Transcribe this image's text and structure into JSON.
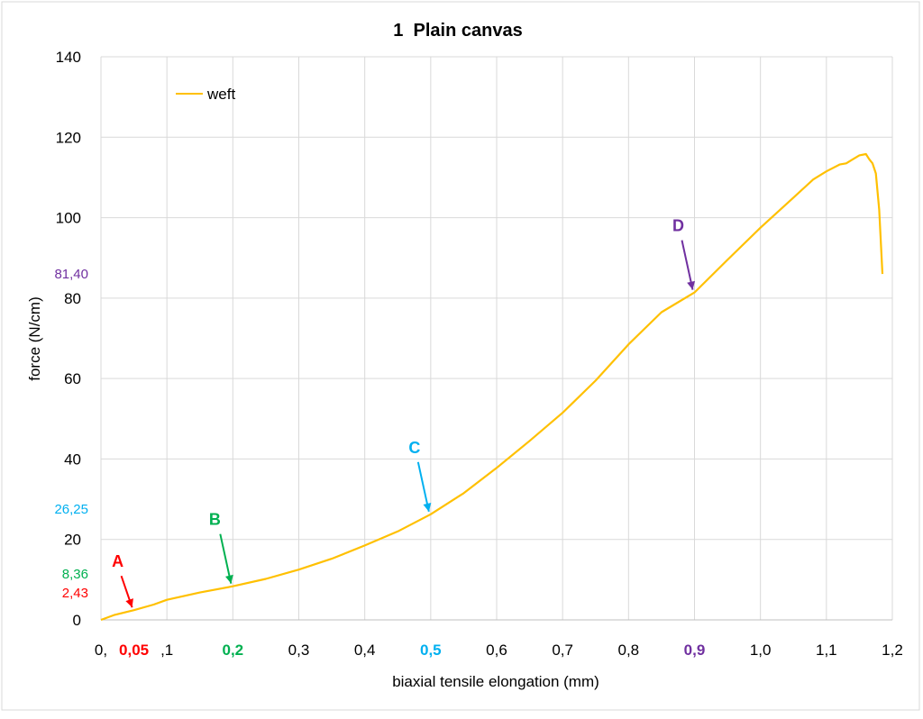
{
  "chart_data": {
    "type": "line",
    "title": "1  Plain canvas",
    "xlabel": "biaxial tensile elongation (mm)",
    "ylabel": "force (N/cm)",
    "xlim": [
      0,
      1.2
    ],
    "ylim": [
      0,
      140
    ],
    "grid": true,
    "legend_position": "top-left",
    "x_ticks": [
      {
        "value": 0,
        "label": "0,"
      },
      {
        "value": 0.1,
        "label": ",1"
      },
      {
        "value": 0.2,
        "label": "0,2"
      },
      {
        "value": 0.3,
        "label": "0,3"
      },
      {
        "value": 0.4,
        "label": "0,4"
      },
      {
        "value": 0.5,
        "label": "0,5"
      },
      {
        "value": 0.6,
        "label": "0,6"
      },
      {
        "value": 0.7,
        "label": "0,7"
      },
      {
        "value": 0.8,
        "label": "0,8"
      },
      {
        "value": 0.9,
        "label": "0,9"
      },
      {
        "value": 1.0,
        "label": "1,0"
      },
      {
        "value": 1.1,
        "label": "1,1"
      },
      {
        "value": 1.2,
        "label": "1,2"
      }
    ],
    "y_ticks": [
      {
        "value": 0,
        "label": "0"
      },
      {
        "value": 20,
        "label": "20"
      },
      {
        "value": 40,
        "label": "40"
      },
      {
        "value": 60,
        "label": "60"
      },
      {
        "value": 80,
        "label": "80"
      },
      {
        "value": 100,
        "label": "100"
      },
      {
        "value": 120,
        "label": "120"
      },
      {
        "value": 140,
        "label": "140"
      }
    ],
    "series": [
      {
        "name": "weft",
        "color": "#FFC000",
        "x": [
          0,
          0.02,
          0.05,
          0.08,
          0.1,
          0.15,
          0.2,
          0.25,
          0.3,
          0.35,
          0.4,
          0.45,
          0.5,
          0.55,
          0.6,
          0.65,
          0.7,
          0.75,
          0.8,
          0.85,
          0.9,
          0.95,
          1.0,
          1.05,
          1.08,
          1.1,
          1.12,
          1.13,
          1.14,
          1.15,
          1.16,
          1.165,
          1.17,
          1.175,
          1.18,
          1.185
        ],
        "y": [
          0,
          1.2,
          2.43,
          3.8,
          5.0,
          6.8,
          8.36,
          10.2,
          12.5,
          15.2,
          18.5,
          22.0,
          26.25,
          31.5,
          37.8,
          44.5,
          51.5,
          59.5,
          68.5,
          76.5,
          81.4,
          89.5,
          97.5,
          105.0,
          109.5,
          111.5,
          113.2,
          113.5,
          114.5,
          115.5,
          115.8,
          114.5,
          113.5,
          111.0,
          102.0,
          86.0
        ]
      }
    ],
    "markers": [
      {
        "label": "A",
        "x": 0.05,
        "y": 2.43,
        "x_label": "0,05",
        "y_label": "2,43",
        "color": "#FF0000"
      },
      {
        "label": "B",
        "x": 0.2,
        "y": 8.36,
        "x_label": "0,2",
        "y_label": "8,36",
        "color": "#00B050"
      },
      {
        "label": "C",
        "x": 0.5,
        "y": 26.25,
        "x_label": "0,5",
        "y_label": "26,25",
        "color": "#00B0F0"
      },
      {
        "label": "D",
        "x": 0.9,
        "y": 81.4,
        "x_label": "0,9",
        "y_label": "81,40",
        "color": "#7030A0"
      }
    ]
  }
}
